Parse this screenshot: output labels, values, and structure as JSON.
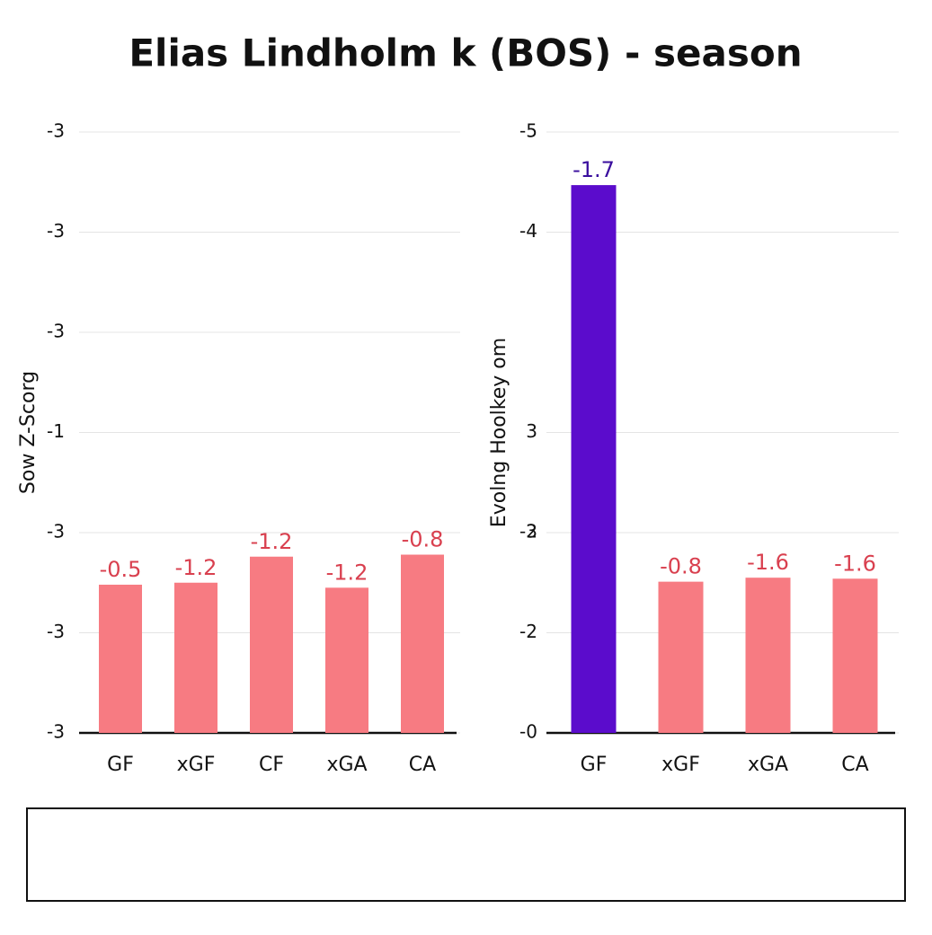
{
  "title": "Elias Lindholm k (BOS) - season",
  "chart_data": [
    {
      "type": "bar",
      "ylabel": "Sow Z-Scorg",
      "categories": [
        "GF",
        "xGF",
        "CF",
        "xGA",
        "CA"
      ],
      "values": [
        1.48,
        1.5,
        1.76,
        1.45,
        1.78
      ],
      "annotations": [
        "-0.5",
        "-1.2",
        "-1.2",
        "-1.2",
        "-0.8"
      ],
      "colors": [
        "#f77b82",
        "#f77b82",
        "#f77b82",
        "#f77b82",
        "#f77b82"
      ],
      "label_colors": [
        "#d9404f",
        "#d9404f",
        "#d9404f",
        "#d9404f",
        "#d9404f"
      ],
      "ylim": [
        0,
        6
      ],
      "yticks": [
        {
          "value": 0,
          "label": "-3"
        },
        {
          "value": 1,
          "label": "-3"
        },
        {
          "value": 2,
          "label": "-3"
        },
        {
          "value": 3,
          "label": "-1"
        },
        {
          "value": 4,
          "label": "-3"
        },
        {
          "value": 5,
          "label": "-3"
        },
        {
          "value": 6,
          "label": "-3"
        }
      ],
      "grid": true
    },
    {
      "type": "bar",
      "ylabel": "Evolng Hoolkey om",
      "categories": [
        "GF",
        "xGF",
        "xGA",
        "CA"
      ],
      "values": [
        5.47,
        1.51,
        1.55,
        1.54
      ],
      "annotations": [
        "-1.7",
        "-0.8",
        "-1.6",
        "-1.6"
      ],
      "colors": [
        "#5b0ccc",
        "#f77b82",
        "#f77b82",
        "#f77b82"
      ],
      "label_colors": [
        "#3a0e9e",
        "#d9404f",
        "#d9404f",
        "#d9404f"
      ],
      "ylim": [
        0,
        6
      ],
      "yticks": [
        {
          "value": 0,
          "label": "-0"
        },
        {
          "value": 1,
          "label": "-2"
        },
        {
          "value": 2,
          "label": "-3"
        },
        3,
        2,
        {
          "value": 5,
          "label": "-4"
        },
        {
          "value": 6,
          "label": "-5"
        }
      ],
      "grid": true
    }
  ]
}
